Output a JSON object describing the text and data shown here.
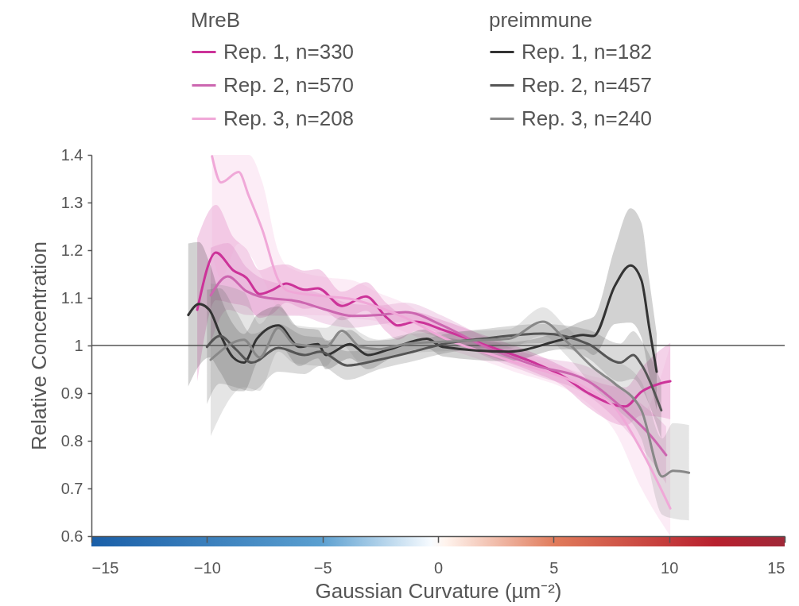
{
  "chart_data": {
    "type": "line",
    "xlabel": "Gaussian Curvature (µm⁻²)",
    "ylabel": "Relative Concentration",
    "annotations": [
      "MreB",
      "preimmune"
    ],
    "xlim": [
      -15,
      15
    ],
    "xticks": [
      -15,
      -10,
      -5,
      0,
      5,
      10,
      15
    ],
    "ylim": [
      0.6,
      1.4
    ],
    "yticks": [
      0.6,
      0.7,
      0.8,
      0.9,
      1,
      1.1,
      1.2,
      1.3,
      1.4
    ],
    "legend": "top",
    "ref_lines": [
      {
        "axis": "y",
        "value": 1,
        "color": "#555555"
      }
    ],
    "series": [
      {
        "name": "Rep. 1, n=330",
        "color": "#cc3399",
        "x": [
          -10.42,
          -9.61,
          -8.87,
          -8.29,
          -7.72,
          -7.15,
          -6.57,
          -5.78,
          -5.2,
          -4.16,
          -3.13,
          -2.21,
          -1.75,
          -0.96,
          0.2,
          1.92,
          4.2,
          5.35,
          6.5,
          8.1,
          8.8,
          9.6,
          10.05
        ],
        "values": [
          1.075,
          1.195,
          1.158,
          1.142,
          1.108,
          1.117,
          1.13,
          1.117,
          1.12,
          1.083,
          1.103,
          1.058,
          1.042,
          1.05,
          1.033,
          1.003,
          0.963,
          0.937,
          0.9,
          0.872,
          0.903,
          0.92,
          0.925
        ],
        "lower": [
          0.925,
          1.095,
          1.088,
          1.082,
          1.058,
          1.067,
          1.09,
          1.077,
          1.08,
          1.053,
          1.073,
          1.028,
          1.012,
          1.03,
          1.013,
          0.983,
          0.943,
          0.917,
          0.87,
          0.832,
          0.853,
          0.85,
          0.845
        ],
        "upper": [
          1.225,
          1.295,
          1.228,
          1.202,
          1.158,
          1.167,
          1.17,
          1.157,
          1.16,
          1.113,
          1.133,
          1.088,
          1.072,
          1.07,
          1.053,
          1.023,
          0.983,
          0.957,
          0.93,
          0.912,
          0.953,
          0.99,
          1.005
        ]
      },
      {
        "name": "Rep. 2, n=570",
        "color": "#cc66b0",
        "x": [
          -9.84,
          -9.1,
          -8.29,
          -7.72,
          -6.0,
          -4.85,
          -3.7,
          -2.56,
          -1.41,
          0.2,
          1.92,
          4.2,
          6.5,
          8.22,
          9.14,
          9.87
        ],
        "values": [
          1.105,
          1.145,
          1.114,
          1.103,
          1.092,
          1.075,
          1.062,
          1.064,
          1.07,
          1.042,
          1.0,
          0.958,
          0.925,
          0.858,
          0.814,
          0.77
        ],
        "lower": [
          1.005,
          1.075,
          1.064,
          1.063,
          1.062,
          1.045,
          1.037,
          1.044,
          1.05,
          1.022,
          0.98,
          0.938,
          0.895,
          0.818,
          0.764,
          0.71
        ],
        "upper": [
          1.205,
          1.215,
          1.164,
          1.143,
          1.122,
          1.105,
          1.087,
          1.084,
          1.09,
          1.062,
          1.02,
          0.978,
          0.955,
          0.898,
          0.864,
          0.83
        ]
      },
      {
        "name": "Rep. 3, n=208",
        "color": "#f0a8d8",
        "x": [
          -9.78,
          -9.39,
          -8.63,
          -8.19,
          -7.6,
          -6.91,
          -6.47,
          -4.85,
          -3.72,
          -2.56,
          -1.41,
          0.2,
          3.0,
          6.5,
          7.65,
          8.8,
          10.05
        ],
        "values": [
          1.397,
          1.342,
          1.364,
          1.314,
          1.242,
          1.137,
          1.114,
          1.103,
          1.097,
          1.08,
          1.058,
          1.017,
          0.97,
          0.908,
          0.87,
          0.78,
          0.658
        ],
        "lower": [
          1.197,
          1.142,
          1.214,
          1.194,
          1.142,
          1.077,
          1.064,
          1.063,
          1.057,
          1.05,
          1.028,
          0.997,
          0.95,
          0.878,
          0.82,
          0.7,
          0.6
        ],
        "upper": [
          1.4,
          1.4,
          1.4,
          1.4,
          1.342,
          1.197,
          1.164,
          1.143,
          1.137,
          1.11,
          1.088,
          1.037,
          0.99,
          0.938,
          0.92,
          0.86,
          1.0
        ]
      },
      {
        "name": "Rep. 1, n=182",
        "color": "#333333",
        "x": [
          -10.81,
          -10.35,
          -9.9,
          -9.44,
          -8.87,
          -8.4,
          -7.84,
          -6.91,
          -6.0,
          -5.2,
          -4.85,
          -3.82,
          -3.03,
          -2.1,
          -0.49,
          0.2,
          3.06,
          5.35,
          6.27,
          6.73,
          7.65,
          8.33,
          8.8,
          9.14,
          9.46
        ],
        "values": [
          1.064,
          1.087,
          1.075,
          1.025,
          0.975,
          0.964,
          1.014,
          1.042,
          0.997,
          1.003,
          0.98,
          1.003,
          0.98,
          0.992,
          1.014,
          0.997,
          0.987,
          1.012,
          1.022,
          1.02,
          1.125,
          1.168,
          1.137,
          1.037,
          0.945
        ],
        "lower": [
          0.914,
          0.957,
          0.975,
          0.945,
          0.905,
          0.904,
          0.964,
          1.002,
          0.957,
          0.973,
          0.95,
          0.973,
          0.95,
          0.972,
          0.994,
          0.977,
          0.967,
          0.992,
          0.992,
          0.98,
          1.045,
          1.048,
          1.017,
          0.937,
          0.865
        ],
        "upper": [
          1.214,
          1.217,
          1.175,
          1.105,
          1.045,
          1.024,
          1.064,
          1.082,
          1.037,
          1.033,
          1.01,
          1.033,
          1.01,
          1.012,
          1.034,
          1.017,
          1.007,
          1.032,
          1.052,
          1.06,
          1.205,
          1.288,
          1.257,
          1.137,
          1.025
        ]
      },
      {
        "name": "Rep. 2, n=457",
        "color": "#555555",
        "x": [
          -10.0,
          -9.44,
          -8.75,
          -8.06,
          -6.91,
          -5.78,
          -5.1,
          -3.93,
          -2.56,
          -1.07,
          0.2,
          1.92,
          4.54,
          6.5,
          7.88,
          8.45,
          8.8,
          9.66
        ],
        "values": [
          0.997,
          1.02,
          0.992,
          0.964,
          0.995,
          0.98,
          0.987,
          0.958,
          0.97,
          0.987,
          1.003,
          1.014,
          1.025,
          1.003,
          0.964,
          0.98,
          0.96,
          0.864
        ],
        "lower": [
          0.877,
          0.92,
          0.912,
          0.904,
          0.945,
          0.94,
          0.957,
          0.928,
          0.95,
          0.967,
          0.983,
          0.994,
          1.005,
          0.973,
          0.924,
          0.93,
          0.91,
          0.804
        ],
        "upper": [
          1.117,
          1.12,
          1.072,
          1.024,
          1.045,
          1.02,
          1.017,
          0.988,
          0.99,
          1.007,
          1.023,
          1.034,
          1.045,
          1.033,
          1.004,
          1.03,
          1.01,
          0.924
        ]
      },
      {
        "name": "Rep. 3, n=240",
        "color": "#888888",
        "x": [
          -9.84,
          -8.4,
          -7.72,
          -6.91,
          -6.22,
          -4.85,
          -4.16,
          -3.37,
          -2.56,
          -1.41,
          0.2,
          3.06,
          4.54,
          5.57,
          6.73,
          7.65,
          8.8,
          9.7,
          10.17,
          10.86
        ],
        "values": [
          0.97,
          1.012,
          0.975,
          1.037,
          1.003,
          0.997,
          1.031,
          0.997,
          0.992,
          1.003,
          1.008,
          1.014,
          1.05,
          1.008,
          0.953,
          0.92,
          0.864,
          0.725,
          0.737,
          0.733
        ],
        "lower": [
          0.81,
          0.912,
          0.905,
          0.987,
          0.963,
          0.957,
          1.001,
          0.967,
          0.972,
          0.983,
          0.988,
          0.994,
          1.02,
          0.978,
          0.913,
          0.87,
          0.804,
          0.645,
          0.637,
          0.633
        ],
        "upper": [
          1.13,
          1.112,
          1.045,
          1.087,
          1.043,
          1.037,
          1.061,
          1.027,
          1.012,
          1.023,
          1.028,
          1.034,
          1.08,
          1.038,
          0.993,
          0.97,
          0.924,
          0.805,
          0.837,
          0.833
        ]
      }
    ]
  }
}
